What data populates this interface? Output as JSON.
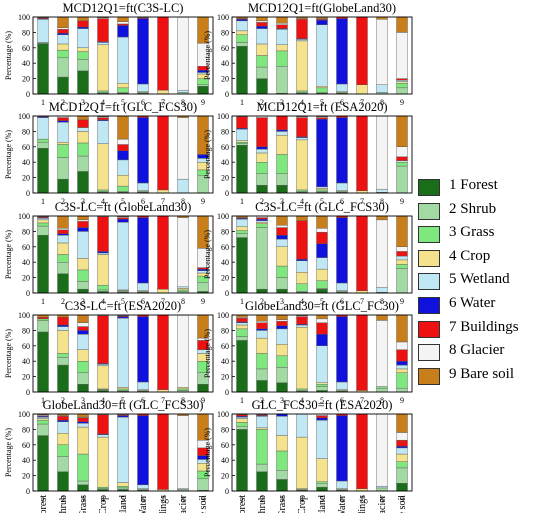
{
  "legend": [
    {
      "label": "1 Forest",
      "color": "#1a6e1a"
    },
    {
      "label": "2 Shrub",
      "color": "#a3d9a3"
    },
    {
      "label": "3 Grass",
      "color": "#7ee87e"
    },
    {
      "label": "4 Crop",
      "color": "#f4e38c"
    },
    {
      "label": "5 Wetland",
      "color": "#bfe7f4"
    },
    {
      "label": "6 Water",
      "color": "#1111dd"
    },
    {
      "label": "7 Buildings",
      "color": "#ee1111"
    },
    {
      "label": "8 Glacier",
      "color": "#f4f4f4"
    },
    {
      "label": "9 Bare soil",
      "color": "#c87e1a"
    }
  ],
  "y_axis_label": "Percentage (%)",
  "category_labels": [
    "Forest",
    "Shrub",
    "Grass",
    "Crop",
    "Wetland",
    "Water",
    "Buildings",
    "Glacier",
    "Bare soil"
  ],
  "chart_data": [
    {
      "type": "bar",
      "stacked": true,
      "title": "MCD12Q1=ft(C3S-LC)",
      "categories": [
        "1",
        "2",
        "3",
        "4",
        "5",
        "6",
        "7",
        "8",
        "9"
      ],
      "ylim": [
        0,
        100
      ],
      "ylabel": "Percentage (%)",
      "values": [
        [
          65,
          1,
          1,
          0,
          30,
          1,
          1,
          0,
          1
        ],
        [
          22,
          25,
          10,
          8,
          12,
          2,
          5,
          2,
          14
        ],
        [
          30,
          15,
          10,
          5,
          25,
          2,
          8,
          0,
          5
        ],
        [
          1,
          1,
          2,
          60,
          3,
          1,
          30,
          1,
          1
        ],
        [
          1,
          1,
          6,
          6,
          60,
          15,
          2,
          3,
          6
        ],
        [
          1,
          0,
          1,
          1,
          10,
          85,
          1,
          1,
          0
        ],
        [
          0,
          0,
          0,
          5,
          0,
          0,
          95,
          0,
          0
        ],
        [
          0,
          2,
          0,
          0,
          3,
          0,
          0,
          95,
          0
        ],
        [
          10,
          2,
          8,
          6,
          2,
          3,
          5,
          30,
          34
        ]
      ]
    },
    {
      "type": "bar",
      "stacked": true,
      "title": "MCD12Q1=ft(GlobeLand30)",
      "categories": [
        "1",
        "2",
        "3",
        "4",
        "5",
        "6",
        "7",
        "8",
        "9"
      ],
      "ylim": [
        0,
        100
      ],
      "ylabel": "Percentage (%)",
      "values": [
        [
          62,
          5,
          10,
          5,
          13,
          2,
          1,
          0,
          2
        ],
        [
          20,
          15,
          15,
          15,
          20,
          3,
          5,
          2,
          5
        ],
        [
          1,
          35,
          20,
          8,
          20,
          1,
          5,
          2,
          8
        ],
        [
          1,
          1,
          2,
          65,
          2,
          1,
          25,
          1,
          2
        ],
        [
          1,
          1,
          6,
          2,
          80,
          6,
          1,
          1,
          2
        ],
        [
          1,
          0,
          1,
          1,
          10,
          85,
          2,
          0,
          0
        ],
        [
          0,
          0,
          0,
          12,
          0,
          0,
          88,
          0,
          0
        ],
        [
          0,
          2,
          0,
          0,
          10,
          0,
          0,
          85,
          3
        ],
        [
          0,
          8,
          6,
          2,
          2,
          0,
          2,
          60,
          20
        ]
      ]
    },
    {
      "type": "bar",
      "stacked": true,
      "title": "MCD12Q1=ft (GLC_FCS30)",
      "categories": [
        "1",
        "2",
        "3",
        "4",
        "5",
        "6",
        "7",
        "8",
        "9"
      ],
      "ylim": [
        0,
        100
      ],
      "ylabel": "Percentage (%)",
      "values": [
        [
          58,
          8,
          4,
          0,
          28,
          1,
          1,
          0,
          0
        ],
        [
          18,
          28,
          17,
          3,
          26,
          2,
          4,
          2,
          0
        ],
        [
          28,
          20,
          17,
          15,
          5,
          0,
          10,
          0,
          5
        ],
        [
          1,
          1,
          2,
          60,
          30,
          1,
          3,
          1,
          1
        ],
        [
          1,
          1,
          7,
          14,
          20,
          12,
          8,
          7,
          30
        ],
        [
          1,
          0,
          1,
          1,
          10,
          85,
          2,
          0,
          0
        ],
        [
          0,
          0,
          0,
          4,
          0,
          0,
          96,
          0,
          0
        ],
        [
          0,
          0,
          0,
          0,
          18,
          0,
          0,
          80,
          2
        ],
        [
          0,
          23,
          7,
          10,
          5,
          5,
          0,
          0,
          50
        ]
      ]
    },
    {
      "type": "bar",
      "stacked": true,
      "title": "MCD12Q1=ft (ESA2020)",
      "categories": [
        "1",
        "2",
        "3",
        "4",
        "5",
        "6",
        "7",
        "8",
        "9"
      ],
      "ylim": [
        0,
        100
      ],
      "ylabel": "Percentage (%)",
      "values": [
        [
          62,
          2,
          2,
          2,
          15,
          1,
          15,
          0,
          1
        ],
        [
          10,
          15,
          15,
          12,
          5,
          3,
          38,
          2,
          0
        ],
        [
          10,
          15,
          25,
          25,
          5,
          2,
          18,
          0,
          0
        ],
        [
          1,
          1,
          2,
          65,
          3,
          1,
          25,
          1,
          1
        ],
        [
          1,
          1,
          2,
          2,
          2,
          88,
          2,
          1,
          1
        ],
        [
          1,
          0,
          1,
          1,
          10,
          85,
          2,
          0,
          0
        ],
        [
          0,
          0,
          0,
          3,
          0,
          0,
          97,
          0,
          0
        ],
        [
          0,
          1,
          0,
          0,
          4,
          0,
          0,
          95,
          0
        ],
        [
          0,
          35,
          5,
          0,
          2,
          0,
          5,
          13,
          40
        ]
      ]
    },
    {
      "type": "bar",
      "stacked": true,
      "title": "C3S-LC=ft (GlobeLand30)",
      "categories": [
        "1",
        "2",
        "3",
        "4",
        "5",
        "6",
        "7",
        "8",
        "9"
      ],
      "ylim": [
        0,
        100
      ],
      "ylabel": "Percentage (%)",
      "values": [
        [
          75,
          12,
          4,
          4,
          2,
          1,
          1,
          0,
          1
        ],
        [
          25,
          15,
          10,
          15,
          10,
          2,
          5,
          2,
          16
        ],
        [
          5,
          10,
          15,
          15,
          35,
          5,
          8,
          2,
          5
        ],
        [
          2,
          2,
          6,
          40,
          2,
          2,
          45,
          1,
          0
        ],
        [
          1,
          1,
          1,
          1,
          88,
          4,
          2,
          1,
          1
        ],
        [
          1,
          0,
          1,
          1,
          10,
          85,
          2,
          0,
          0
        ],
        [
          0,
          0,
          0,
          5,
          0,
          0,
          95,
          0,
          0
        ],
        [
          0,
          2,
          2,
          2,
          2,
          0,
          0,
          90,
          2
        ],
        [
          2,
          12,
          8,
          4,
          3,
          2,
          2,
          25,
          42
        ]
      ]
    },
    {
      "type": "bar",
      "stacked": true,
      "title": "C3S-LC=ft (GLC_FCS30)",
      "categories": [
        "1",
        "2",
        "3",
        "4",
        "5",
        "6",
        "7",
        "8",
        "9"
      ],
      "ylim": [
        0,
        100
      ],
      "ylabel": "Percentage (%)",
      "values": [
        [
          72,
          5,
          4,
          5,
          10,
          1,
          1,
          0,
          2
        ],
        [
          5,
          80,
          5,
          2,
          2,
          2,
          2,
          2,
          0
        ],
        [
          5,
          15,
          15,
          25,
          10,
          5,
          10,
          3,
          12
        ],
        [
          1,
          1,
          10,
          15,
          15,
          2,
          50,
          0,
          6
        ],
        [
          5,
          1,
          10,
          15,
          15,
          18,
          15,
          5,
          16
        ],
        [
          1,
          0,
          1,
          1,
          10,
          85,
          2,
          0,
          0
        ],
        [
          0,
          0,
          0,
          3,
          0,
          0,
          97,
          0,
          0
        ],
        [
          0,
          1,
          0,
          0,
          6,
          0,
          0,
          88,
          5
        ],
        [
          0,
          32,
          5,
          6,
          5,
          0,
          6,
          6,
          40
        ]
      ]
    },
    {
      "type": "bar",
      "stacked": true,
      "title": "C3S-LC=ft (ESA2020)",
      "categories": [
        "1",
        "2",
        "3",
        "4",
        "5",
        "6",
        "7",
        "8",
        "9"
      ],
      "ylim": [
        0,
        100
      ],
      "ylabel": "Percentage (%)",
      "values": [
        [
          78,
          15,
          2,
          0,
          0,
          0,
          2,
          0,
          3
        ],
        [
          35,
          10,
          5,
          30,
          5,
          2,
          10,
          0,
          3
        ],
        [
          10,
          15,
          15,
          15,
          20,
          5,
          5,
          5,
          10
        ],
        [
          2,
          1,
          1,
          30,
          2,
          1,
          62,
          1,
          0
        ],
        [
          1,
          1,
          2,
          2,
          90,
          2,
          1,
          1,
          0
        ],
        [
          1,
          0,
          1,
          1,
          10,
          85,
          2,
          0,
          0
        ],
        [
          0,
          0,
          0,
          3,
          0,
          0,
          97,
          0,
          0
        ],
        [
          0,
          2,
          2,
          2,
          0,
          0,
          0,
          94,
          0
        ],
        [
          10,
          15,
          15,
          10,
          5,
          0,
          12,
          3,
          30
        ]
      ]
    },
    {
      "type": "bar",
      "stacked": true,
      "title": "GlobeLand30=ft (GLC_FC30)",
      "categories": [
        "1",
        "2",
        "3",
        "4",
        "5",
        "6",
        "7",
        "8",
        "9"
      ],
      "ylim": [
        0,
        100
      ],
      "ylabel": "Percentage (%)",
      "values": [
        [
          67,
          5,
          10,
          5,
          3,
          1,
          5,
          1,
          3
        ],
        [
          15,
          15,
          20,
          20,
          10,
          2,
          8,
          2,
          8
        ],
        [
          12,
          20,
          15,
          15,
          20,
          4,
          6,
          2,
          6
        ],
        [
          1,
          1,
          2,
          80,
          3,
          1,
          10,
          1,
          1
        ],
        [
          2,
          5,
          3,
          2,
          48,
          15,
          15,
          5,
          5
        ],
        [
          1,
          0,
          1,
          1,
          10,
          85,
          2,
          0,
          0
        ],
        [
          0,
          0,
          0,
          2,
          0,
          0,
          98,
          0,
          0
        ],
        [
          0,
          5,
          2,
          0,
          0,
          0,
          0,
          86,
          7
        ],
        [
          0,
          5,
          20,
          5,
          5,
          5,
          15,
          10,
          35
        ]
      ]
    },
    {
      "type": "bar",
      "stacked": true,
      "title": "GlobeLand30=ft (GLC_FCS30)",
      "categories": [
        "1",
        "2",
        "3",
        "4",
        "5",
        "6",
        "7",
        "8",
        "9"
      ],
      "ylim": [
        0,
        100
      ],
      "ylabel": "Percentage (%)",
      "values": [
        [
          72,
          15,
          5,
          2,
          2,
          1,
          1,
          1,
          1
        ],
        [
          25,
          20,
          15,
          15,
          15,
          2,
          5,
          1,
          2
        ],
        [
          8,
          5,
          35,
          35,
          5,
          2,
          5,
          1,
          4
        ],
        [
          2,
          1,
          2,
          65,
          3,
          1,
          25,
          1,
          0
        ],
        [
          2,
          2,
          2,
          5,
          85,
          2,
          1,
          1,
          0
        ],
        [
          1,
          0,
          1,
          1,
          5,
          90,
          2,
          0,
          0
        ],
        [
          0,
          0,
          0,
          2,
          0,
          0,
          98,
          0,
          0
        ],
        [
          0,
          2,
          0,
          0,
          1,
          0,
          0,
          95,
          2
        ],
        [
          1,
          15,
          10,
          10,
          5,
          5,
          10,
          10,
          34
        ]
      ]
    },
    {
      "type": "bar",
      "stacked": true,
      "title": "GLC_FCS30=ft (ESA2020)",
      "categories": [
        "1",
        "2",
        "3",
        "4",
        "5",
        "6",
        "7",
        "8",
        "9"
      ],
      "ylim": [
        0,
        100
      ],
      "ylabel": "Percentage (%)",
      "values": [
        [
          80,
          4,
          5,
          5,
          2,
          1,
          2,
          0,
          1
        ],
        [
          25,
          10,
          45,
          2,
          15,
          1,
          1,
          0,
          1
        ],
        [
          15,
          12,
          25,
          20,
          25,
          3,
          0,
          0,
          0
        ],
        [
          1,
          1,
          1,
          67,
          30,
          0,
          0,
          0,
          0
        ],
        [
          5,
          5,
          2,
          30,
          50,
          3,
          3,
          2,
          0
        ],
        [
          1,
          0,
          1,
          1,
          10,
          85,
          2,
          0,
          0
        ],
        [
          0,
          0,
          0,
          3,
          0,
          0,
          97,
          0,
          0
        ],
        [
          0,
          4,
          0,
          0,
          2,
          0,
          0,
          94,
          0
        ],
        [
          10,
          20,
          8,
          10,
          8,
          2,
          8,
          10,
          24
        ]
      ]
    }
  ]
}
